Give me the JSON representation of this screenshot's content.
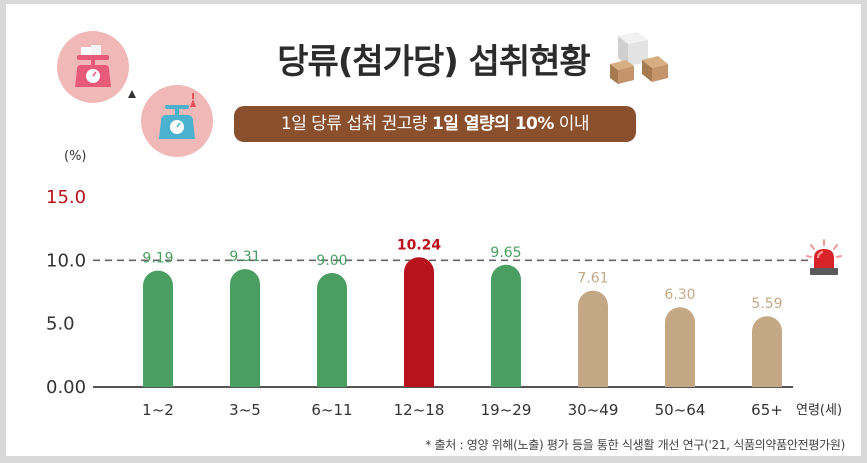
{
  "title": "당류(첨가당) 섭취현황",
  "subtitle_parts": [
    "1일 당류 섭취 권고량 ",
    "1일 열량의 10%",
    " 이내"
  ],
  "source": "* 출처 : 영양 위해(노출) 평가 등을 통한 식생활 개선 연구('21, 식품의약품안전평가원)",
  "colors": {
    "green": "#4a9e62",
    "red": "#b8121d",
    "tan": "#c4a886",
    "dashed": "#666666",
    "pill": "#8a4f2c"
  },
  "chart_data": {
    "type": "bar",
    "categories": [
      "1~2",
      "3~5",
      "6~11",
      "12~18",
      "19~29",
      "30~49",
      "50~64",
      "65+"
    ],
    "values": [
      9.19,
      9.31,
      9.0,
      10.24,
      9.65,
      7.61,
      6.3,
      5.59
    ],
    "value_labels": [
      "9.19",
      "9.31",
      "9.00",
      "10.24",
      "9.65",
      "7.61",
      "6.30",
      "5.59"
    ],
    "bar_colors": [
      "green",
      "green",
      "green",
      "red",
      "green",
      "tan",
      "tan",
      "tan"
    ],
    "ylabel": "(%)",
    "xlabel": "연령(세)",
    "yticks": [
      "0.00",
      "5.0",
      "10.0",
      "15.0"
    ],
    "ytick_values": [
      0,
      5,
      10,
      15
    ],
    "ylim": [
      0,
      15
    ],
    "reference_line": 10,
    "grid": false
  }
}
